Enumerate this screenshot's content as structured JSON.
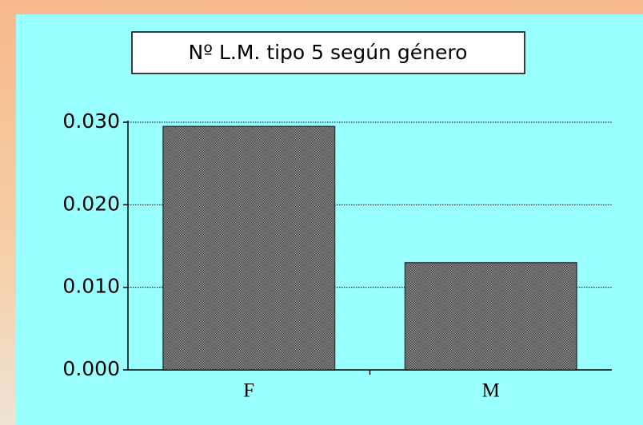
{
  "chart_data": {
    "type": "bar",
    "title": "Nº L.M. tipo 5 según género",
    "categories": [
      "F",
      "M"
    ],
    "values": [
      0.0295,
      0.013
    ],
    "color": "#6e6e6e",
    "ylim": [
      0,
      0.03
    ],
    "yticks": [
      {
        "value": 0,
        "label": "0.000"
      },
      {
        "value": 0.01,
        "label": "0.010"
      },
      {
        "value": 0.02,
        "label": "0.020"
      },
      {
        "value": 0.03,
        "label": "0.030"
      }
    ],
    "grid": true
  }
}
